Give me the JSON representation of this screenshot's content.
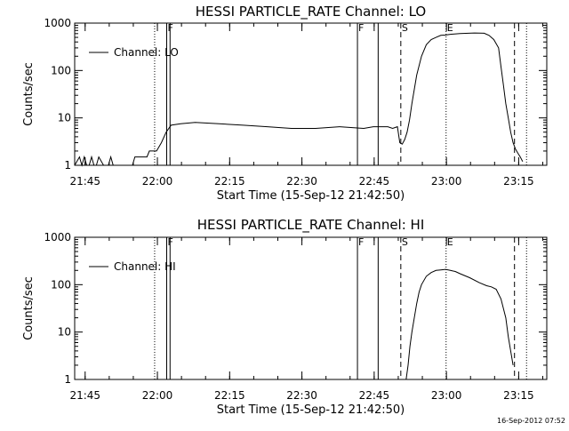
{
  "footer_timestamp": "16-Sep-2012 07:52",
  "chart_data": [
    {
      "type": "line",
      "title": "HESSI PARTICLE_RATE Channel: LO",
      "xlabel": "Start Time (15-Sep-12 21:42:50)",
      "ylabel": "Counts/sec",
      "y_scale": "log",
      "ylim": [
        1,
        1000
      ],
      "xlim_minutes_after_21_42_50": [
        0,
        98
      ],
      "x_ticks": [
        {
          "t": 2.17,
          "label": "21:45"
        },
        {
          "t": 17.17,
          "label": "22:00"
        },
        {
          "t": 32.17,
          "label": "22:15"
        },
        {
          "t": 47.17,
          "label": "22:30"
        },
        {
          "t": 62.17,
          "label": "22:45"
        },
        {
          "t": 77.17,
          "label": "23:00"
        },
        {
          "t": 92.17,
          "label": "23:15"
        }
      ],
      "y_ticks": [
        {
          "v": 1,
          "label": "1"
        },
        {
          "v": 10,
          "label": "10"
        },
        {
          "v": 100,
          "label": "100"
        },
        {
          "v": 1000,
          "label": "1000"
        }
      ],
      "legend": {
        "label": "Channel: LO",
        "placement": "top-left"
      },
      "markers": [
        {
          "t": 16.6,
          "style": "dotted",
          "label": ""
        },
        {
          "t": 19.1,
          "style": "solid",
          "label": "F"
        },
        {
          "t": 19.8,
          "style": "solid",
          "label": ""
        },
        {
          "t": 58.7,
          "style": "solid",
          "label": "F"
        },
        {
          "t": 63.0,
          "style": "solid",
          "label": ""
        },
        {
          "t": 67.7,
          "style": "dashed",
          "label": "S"
        },
        {
          "t": 77.1,
          "style": "dotted",
          "label": "E"
        },
        {
          "t": 91.3,
          "style": "dashed",
          "label": ""
        },
        {
          "t": 93.8,
          "style": "dotted",
          "label": ""
        }
      ],
      "series": [
        {
          "x": [
            0,
            1,
            1.5,
            2,
            2.5,
            3,
            3.5,
            4,
            4.5,
            5,
            6,
            7,
            7.5,
            8,
            9,
            12,
            12.5,
            15,
            15.5,
            16,
            17,
            18,
            19,
            20,
            22,
            25,
            30,
            35,
            40,
            45,
            50,
            55,
            60,
            62,
            65,
            66,
            67,
            67.5,
            68,
            68.5,
            69,
            69.5,
            70,
            71,
            72,
            73,
            74,
            75,
            76,
            77,
            78,
            80,
            83,
            85,
            86,
            87,
            88,
            88.5,
            89,
            89.5,
            90,
            90.5,
            91,
            91.5,
            92,
            92.5,
            93
          ],
          "y": [
            1,
            1.5,
            1,
            1.5,
            1,
            1,
            1.5,
            1,
            1,
            1.5,
            1,
            1,
            1.5,
            1,
            1,
            1,
            1.5,
            1.5,
            2,
            2,
            2,
            3,
            5,
            7,
            7.5,
            8,
            7.5,
            7,
            6.5,
            6,
            6,
            6.5,
            6,
            6.5,
            6.5,
            6,
            6.5,
            3,
            2.8,
            3.5,
            5,
            9,
            20,
            80,
            200,
            350,
            450,
            500,
            550,
            560,
            580,
            600,
            620,
            610,
            550,
            450,
            300,
            120,
            50,
            20,
            10,
            5,
            3,
            2.2,
            1.8,
            1.5,
            1.2
          ]
        }
      ]
    },
    {
      "type": "line",
      "title": "HESSI PARTICLE_RATE Channel: HI",
      "xlabel": "Start Time (15-Sep-12 21:42:50)",
      "ylabel": "Counts/sec",
      "y_scale": "log",
      "ylim": [
        1,
        1000
      ],
      "xlim_minutes_after_21_42_50": [
        0,
        98
      ],
      "x_ticks": [
        {
          "t": 2.17,
          "label": "21:45"
        },
        {
          "t": 17.17,
          "label": "22:00"
        },
        {
          "t": 32.17,
          "label": "22:15"
        },
        {
          "t": 47.17,
          "label": "22:30"
        },
        {
          "t": 62.17,
          "label": "22:45"
        },
        {
          "t": 77.17,
          "label": "23:00"
        },
        {
          "t": 92.17,
          "label": "23:15"
        }
      ],
      "y_ticks": [
        {
          "v": 1,
          "label": "1"
        },
        {
          "v": 10,
          "label": "10"
        },
        {
          "v": 100,
          "label": "100"
        },
        {
          "v": 1000,
          "label": "1000"
        }
      ],
      "legend": {
        "label": "Channel: HI",
        "placement": "top-left"
      },
      "markers": [
        {
          "t": 16.6,
          "style": "dotted",
          "label": ""
        },
        {
          "t": 19.1,
          "style": "solid",
          "label": "F"
        },
        {
          "t": 19.8,
          "style": "solid",
          "label": ""
        },
        {
          "t": 58.7,
          "style": "solid",
          "label": "F"
        },
        {
          "t": 63.0,
          "style": "solid",
          "label": ""
        },
        {
          "t": 67.7,
          "style": "dashed",
          "label": "S"
        },
        {
          "t": 77.1,
          "style": "dotted",
          "label": "E"
        },
        {
          "t": 91.3,
          "style": "dashed",
          "label": ""
        },
        {
          "t": 93.8,
          "style": "dotted",
          "label": ""
        }
      ],
      "series": [
        {
          "x": [
            68.8,
            69.2,
            69.6,
            70,
            70.5,
            71,
            71.5,
            72,
            73,
            74,
            75,
            76,
            77,
            78,
            79,
            80,
            82,
            84,
            85.5,
            86.5,
            87.5,
            88.5,
            89.5,
            90,
            90.5,
            91
          ],
          "y": [
            1,
            2,
            5,
            10,
            20,
            40,
            70,
            100,
            150,
            180,
            200,
            205,
            210,
            200,
            190,
            170,
            140,
            110,
            95,
            90,
            80,
            50,
            20,
            8,
            4,
            2
          ]
        }
      ]
    }
  ]
}
